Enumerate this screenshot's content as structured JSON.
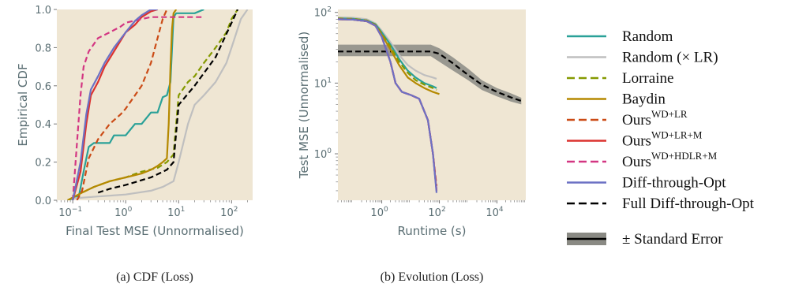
{
  "colors": {
    "panel_bg": "#efe6d3",
    "tick_text": "#5a6e73",
    "random": "#2aa198",
    "random_lr": "#bfbfbf",
    "lorraine": "#859900",
    "baydin": "#b58900",
    "ours_wd_lr": "#cb4b16",
    "ours_wd_lr_m": "#dc322f",
    "ours_wd_hdlr_m": "#d33682",
    "diff_opt": "#6c71c4",
    "full_diff_opt": "#000000",
    "stderr_band": "#8a8a84"
  },
  "legend": {
    "items": [
      {
        "key": "random",
        "label": "Random",
        "sup": "",
        "dash": false,
        "color_key": "random"
      },
      {
        "key": "random_lr",
        "label": "Random (× LR)",
        "sup": "",
        "dash": false,
        "color_key": "random_lr"
      },
      {
        "key": "lorraine",
        "label": "Lorraine",
        "sup": "",
        "dash": true,
        "color_key": "lorraine"
      },
      {
        "key": "baydin",
        "label": "Baydin",
        "sup": "",
        "dash": false,
        "color_key": "baydin"
      },
      {
        "key": "ours_wd_lr",
        "label": "Ours",
        "sup": "WD+LR",
        "dash": true,
        "color_key": "ours_wd_lr"
      },
      {
        "key": "ours_wd_lr_m",
        "label": "Ours",
        "sup": "WD+LR+M",
        "dash": false,
        "color_key": "ours_wd_lr_m"
      },
      {
        "key": "ours_wd_hdlr_m",
        "label": "Ours",
        "sup": "WD+HDLR+M",
        "dash": true,
        "color_key": "ours_wd_hdlr_m"
      },
      {
        "key": "diff_opt",
        "label": "Diff-through-Opt",
        "sup": "",
        "dash": false,
        "color_key": "diff_opt"
      },
      {
        "key": "full_diff_opt",
        "label": "Full Diff-through-Opt",
        "sup": "",
        "dash": true,
        "color_key": "full_diff_opt"
      }
    ],
    "stderr_label": "± Standard Error"
  },
  "chart_data": [
    {
      "type": "line",
      "caption": "(a) CDF (Loss)",
      "xlabel": "Final Test MSE (Unnormalised)",
      "ylabel": "Empirical CDF",
      "xscale": "log",
      "xlim": [
        0.05,
        250
      ],
      "ylim": [
        0,
        1
      ],
      "xticks": [
        {
          "v": 0.1,
          "label": "10",
          "exp": "−1"
        },
        {
          "v": 1,
          "label": "10",
          "exp": "0"
        },
        {
          "v": 10,
          "label": "10",
          "exp": "1"
        },
        {
          "v": 100,
          "label": "10",
          "exp": "2"
        }
      ],
      "yticks": [
        {
          "v": 0,
          "label": "0.0"
        },
        {
          "v": 0.2,
          "label": "0.2"
        },
        {
          "v": 0.4,
          "label": "0.4"
        },
        {
          "v": 0.6,
          "label": "0.6"
        },
        {
          "v": 0.8,
          "label": "0.8"
        },
        {
          "v": 1,
          "label": "1.0"
        }
      ],
      "series": [
        {
          "key": "random",
          "x": [
            0.08,
            0.13,
            0.16,
            0.2,
            0.25,
            0.3,
            0.5,
            0.6,
            1.0,
            1.5,
            2.0,
            3.0,
            4.0,
            5.0,
            6.0,
            7.0,
            8.0,
            9.0,
            12,
            20,
            30
          ],
          "y": [
            0,
            0.02,
            0.15,
            0.28,
            0.3,
            0.3,
            0.3,
            0.34,
            0.34,
            0.4,
            0.4,
            0.46,
            0.46,
            0.54,
            0.55,
            0.62,
            0.96,
            0.98,
            0.98,
            0.98,
            1.0
          ]
        },
        {
          "key": "random_lr",
          "x": [
            0.1,
            0.3,
            1,
            3,
            5,
            8,
            10,
            15,
            20,
            30,
            50,
            80,
            100,
            150,
            200
          ],
          "y": [
            0.01,
            0.02,
            0.03,
            0.05,
            0.07,
            0.1,
            0.2,
            0.4,
            0.5,
            0.55,
            0.62,
            0.72,
            0.8,
            0.95,
            1.0
          ]
        },
        {
          "key": "lorraine",
          "x": [
            0.08,
            0.15,
            0.25,
            0.5,
            1,
            2,
            4,
            6,
            8,
            10,
            15,
            20,
            30,
            50,
            80,
            100,
            130
          ],
          "y": [
            0,
            0.04,
            0.07,
            0.1,
            0.12,
            0.15,
            0.17,
            0.2,
            0.24,
            0.55,
            0.62,
            0.65,
            0.72,
            0.8,
            0.88,
            0.95,
            1.0
          ]
        },
        {
          "key": "baydin",
          "x": [
            0.08,
            0.15,
            0.25,
            0.5,
            1,
            2,
            3,
            4,
            5,
            6,
            6.5,
            7,
            7.5,
            8,
            9
          ],
          "y": [
            0,
            0.04,
            0.07,
            0.1,
            0.12,
            0.14,
            0.16,
            0.18,
            0.2,
            0.22,
            0.4,
            0.7,
            0.9,
            0.98,
            1.0
          ]
        },
        {
          "key": "ours_wd_lr",
          "x": [
            0.12,
            0.15,
            0.2,
            0.3,
            0.5,
            0.8,
            1.0,
            1.5,
            2.0,
            3.0,
            4.0,
            5.0,
            6.0
          ],
          "y": [
            0,
            0.05,
            0.22,
            0.32,
            0.4,
            0.45,
            0.48,
            0.55,
            0.6,
            0.72,
            0.85,
            0.95,
            1.0
          ]
        },
        {
          "key": "ours_wd_lr_m",
          "x": [
            0.1,
            0.14,
            0.18,
            0.22,
            0.3,
            0.4,
            0.6,
            1.0,
            1.5,
            2.0,
            3.0,
            4.0
          ],
          "y": [
            0,
            0.15,
            0.4,
            0.55,
            0.62,
            0.7,
            0.78,
            0.88,
            0.92,
            0.96,
            0.99,
            1.0
          ]
        },
        {
          "key": "ours_wd_hdlr_m",
          "x": [
            0.1,
            0.12,
            0.14,
            0.16,
            0.2,
            0.3,
            0.5,
            0.8,
            1.0,
            2.0,
            3.0,
            5.0,
            10,
            20,
            30
          ],
          "y": [
            0,
            0.3,
            0.55,
            0.7,
            0.78,
            0.85,
            0.88,
            0.91,
            0.93,
            0.95,
            0.96,
            0.96,
            0.96,
            0.96,
            0.96
          ]
        },
        {
          "key": "diff_opt",
          "x": [
            0.1,
            0.14,
            0.18,
            0.22,
            0.3,
            0.4,
            0.6,
            1.0,
            1.5,
            2.0,
            3.0,
            4.0
          ],
          "y": [
            0,
            0.2,
            0.45,
            0.58,
            0.65,
            0.72,
            0.8,
            0.88,
            0.94,
            0.97,
            1.0,
            1.0
          ]
        },
        {
          "key": "full_diff_opt",
          "x": [
            0.3,
            0.5,
            1,
            3,
            6,
            8,
            10,
            20,
            50,
            100,
            130
          ],
          "y": [
            0.04,
            0.06,
            0.08,
            0.12,
            0.16,
            0.2,
            0.5,
            0.6,
            0.75,
            0.93,
            1.0
          ]
        }
      ]
    },
    {
      "type": "line",
      "caption": "(b) Evolution (Loss)",
      "xlabel": "Runtime (s)",
      "ylabel": "Test MSE (Unnormalised)",
      "xscale": "log",
      "yscale": "log",
      "xlim": [
        0.03,
        100000
      ],
      "ylim": [
        0.22,
        110
      ],
      "xticks": [
        {
          "v": 1,
          "label": "10",
          "exp": "0"
        },
        {
          "v": 100,
          "label": "10",
          "exp": "2"
        },
        {
          "v": 10000,
          "label": "10",
          "exp": "4"
        }
      ],
      "yticks": [
        {
          "v": 1,
          "label": "10",
          "exp": "0"
        },
        {
          "v": 10,
          "label": "10",
          "exp": "1"
        },
        {
          "v": 100,
          "label": "10",
          "exp": "2"
        }
      ],
      "stderr_band": {
        "x": [
          0.03,
          0.5,
          2,
          5,
          10,
          20,
          50,
          100,
          300,
          1000,
          3000,
          10000,
          30000,
          70000
        ],
        "lo": [
          24,
          24,
          24,
          24,
          24,
          24,
          24,
          20,
          15,
          11,
          8,
          6.5,
          5.5,
          5.0
        ],
        "hi": [
          35,
          35,
          35,
          35,
          35,
          35,
          35,
          31,
          23,
          16,
          11,
          8.5,
          7.2,
          6.2
        ]
      },
      "series": [
        {
          "key": "full_diff_opt",
          "x": [
            0.03,
            0.5,
            2,
            5,
            10,
            20,
            50,
            100,
            300,
            1000,
            3000,
            10000,
            30000,
            70000
          ],
          "y": [
            28,
            28,
            28,
            28,
            28,
            28,
            28,
            26,
            19,
            13,
            9.5,
            7.5,
            6.3,
            5.6
          ]
        },
        {
          "key": "random_lr",
          "x": [
            0.03,
            0.1,
            0.3,
            0.6,
            1,
            2,
            4,
            8,
            15,
            30,
            60,
            80
          ],
          "y": [
            85,
            84,
            80,
            70,
            55,
            38,
            25,
            18,
            15,
            13,
            12,
            11.5
          ]
        },
        {
          "key": "random",
          "x": [
            0.03,
            0.1,
            0.3,
            0.6,
            1,
            2,
            4,
            8,
            15,
            30,
            60,
            80
          ],
          "y": [
            82,
            81,
            77,
            68,
            52,
            35,
            22,
            15,
            12,
            10,
            9,
            8.5
          ]
        },
        {
          "key": "lorraine",
          "x": [
            0.03,
            0.1,
            0.3,
            0.6,
            1,
            2,
            4,
            8,
            15,
            30,
            60,
            80
          ],
          "y": [
            82,
            81,
            77,
            67,
            50,
            33,
            20,
            14,
            11,
            9.5,
            8.5,
            8
          ]
        },
        {
          "key": "baydin",
          "x": [
            0.03,
            0.1,
            0.3,
            0.6,
            1,
            2,
            4,
            8,
            15,
            30,
            60,
            100
          ],
          "y": [
            80,
            79,
            75,
            65,
            48,
            30,
            18,
            12,
            10,
            8.5,
            7.5,
            7
          ]
        },
        {
          "key": "ours_wd_lr",
          "x": [
            0.03,
            0.1,
            0.3,
            0.6,
            1,
            2,
            3,
            5,
            10,
            20,
            40,
            60,
            80
          ],
          "y": [
            80,
            79,
            75,
            65,
            45,
            20,
            10,
            7.5,
            6.8,
            6,
            3,
            1,
            0.35
          ]
        },
        {
          "key": "ours_wd_lr_m",
          "x": [
            0.03,
            0.1,
            0.3,
            0.6,
            1,
            2,
            3,
            5,
            10,
            20,
            40,
            60,
            80
          ],
          "y": [
            80,
            79,
            75,
            65,
            45,
            20,
            10,
            7.5,
            6.8,
            6,
            3,
            1,
            0.3
          ]
        },
        {
          "key": "ours_wd_hdlr_m",
          "x": [
            0.03,
            0.1,
            0.3,
            0.6,
            1,
            2,
            3,
            5,
            10,
            20,
            40,
            60,
            80
          ],
          "y": [
            80,
            79,
            75,
            65,
            45,
            20,
            10,
            7.5,
            6.8,
            6,
            3,
            1,
            0.3
          ]
        },
        {
          "key": "diff_opt",
          "x": [
            0.03,
            0.1,
            0.3,
            0.6,
            1,
            2,
            3,
            5,
            10,
            20,
            40,
            60,
            80
          ],
          "y": [
            80,
            79,
            75,
            65,
            45,
            20,
            10,
            7.5,
            6.8,
            6,
            3,
            1,
            0.28
          ]
        }
      ]
    }
  ]
}
